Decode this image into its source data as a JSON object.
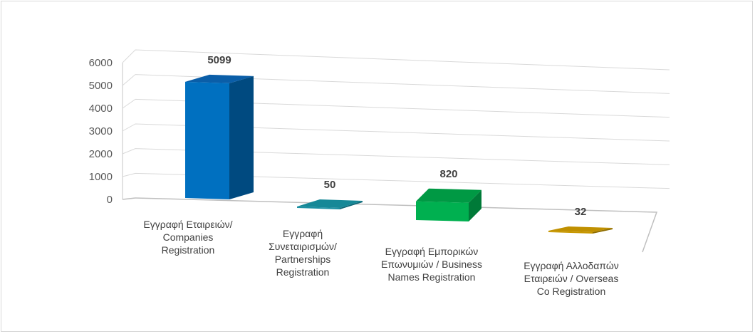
{
  "chart_data": {
    "type": "bar",
    "title": "",
    "xlabel": "",
    "ylabel": "",
    "ylim": [
      0,
      6000
    ],
    "yticks": [
      0,
      1000,
      2000,
      3000,
      4000,
      5000,
      6000
    ],
    "ytick_labels": [
      "0",
      "1000",
      "2000",
      "3000",
      "4000",
      "5000",
      "6000"
    ],
    "grid": true,
    "legend": "none",
    "style": "3d-column",
    "categories": [
      [
        "Εγγραφή Εταιρειών/",
        "Companies",
        "Registration"
      ],
      [
        "Εγγραφή",
        "Συνεταιρισμών/",
        "Partnerships",
        "Registration"
      ],
      [
        "Εγγραφή Εμπορικών",
        "Επωνυμιών / Business",
        "Names Registration"
      ],
      [
        "Εγγραφή Αλλοδαπών",
        "Εταιρειών / Overseas",
        "Co Registration"
      ]
    ],
    "values": [
      5099,
      50,
      820,
      32
    ],
    "data_labels": [
      "5099",
      "50",
      "820",
      "32"
    ],
    "colors": [
      {
        "front": "#0070c0",
        "side": "#004a80",
        "top": "#0a5ea8"
      },
      {
        "front": "#1b8fa2",
        "side": "#0f6877",
        "top": "#168897"
      },
      {
        "front": "#00b050",
        "side": "#007a38",
        "top": "#009944"
      },
      {
        "front": "#c89800",
        "side": "#8f6d00",
        "top": "#c09000"
      }
    ]
  }
}
